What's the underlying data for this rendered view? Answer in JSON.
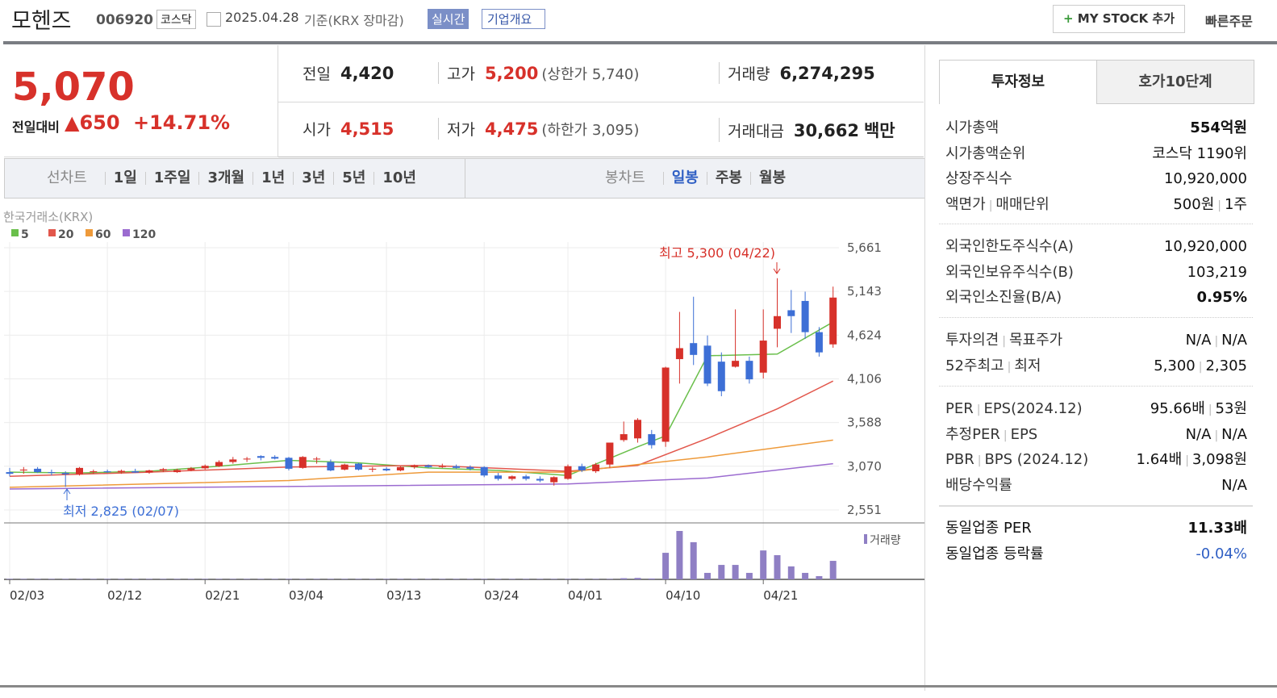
{
  "header": {
    "name": "모헨즈",
    "code": "006920",
    "market": "코스닥",
    "date": "2025.04.28",
    "basis": "기준(KRX 장마감)",
    "realtime": "실시간",
    "overview": "기업개요",
    "mystock": "MY STOCK 추가",
    "quick": "빠른주문"
  },
  "price": {
    "current": "5,070",
    "diff_label": "전일대비",
    "change": "650",
    "pct": "+14.71%"
  },
  "quotes": [
    {
      "label": "전일",
      "value": "4,420"
    },
    {
      "label": "고가",
      "value": "5,200",
      "sub": "(상한가 5,740)"
    },
    {
      "label": "거래량",
      "value": "6,274,295"
    },
    {
      "label": "시가",
      "value": "4,515"
    },
    {
      "label": "저가",
      "value": "4,475",
      "sub": "(하한가 3,095)"
    },
    {
      "label": "거래대금",
      "value": "30,662",
      "unit": "백만"
    }
  ],
  "tabs_left": [
    "선차트",
    "1일",
    "1주일",
    "3개월",
    "1년",
    "3년",
    "5년",
    "10년"
  ],
  "tabs_right": [
    "봉차트",
    "일봉",
    "주봉",
    "월봉"
  ],
  "side": {
    "tabs": [
      "투자정보",
      "호가10단계"
    ],
    "groups": [
      [
        {
          "label": [
            "시가총액"
          ],
          "value": [
            "554억원"
          ]
        },
        {
          "label": [
            "시가총액순위"
          ],
          "value": [
            "코스닥 1190위"
          ]
        },
        {
          "label": [
            "상장주식수"
          ],
          "value": [
            "10,920,000"
          ]
        },
        {
          "label": [
            "액면가",
            "매매단위"
          ],
          "value": [
            "500원",
            "1주"
          ]
        }
      ],
      [
        {
          "label": [
            "외국인한도주식수(A)"
          ],
          "value": [
            "10,920,000"
          ]
        },
        {
          "label": [
            "외국인보유주식수(B)"
          ],
          "value": [
            "103,219"
          ]
        },
        {
          "label": [
            "외국인소진율(B/A)"
          ],
          "value": [
            "0.95%"
          ]
        }
      ],
      [
        {
          "label": [
            "투자의견",
            "목표주가"
          ],
          "value": [
            "N/A",
            "N/A"
          ]
        },
        {
          "label": [
            "52주최고",
            "최저"
          ],
          "value": [
            "5,300",
            "2,305"
          ]
        }
      ],
      [
        {
          "label": [
            "PER",
            "EPS(2024.12)"
          ],
          "value": [
            "95.66배",
            "53원"
          ]
        },
        {
          "label": [
            "추정PER",
            "EPS"
          ],
          "value": [
            "N/A",
            "N/A"
          ]
        },
        {
          "label": [
            "PBR",
            "BPS (2024.12)"
          ],
          "value": [
            "1.64배",
            "3,098원"
          ]
        },
        {
          "label": [
            "배당수익률"
          ],
          "value": [
            "N/A"
          ]
        }
      ],
      [
        {
          "label": [
            "동일업종 PER"
          ],
          "value": [
            "11.33배"
          ]
        },
        {
          "label": [
            "동일업종 등락률"
          ],
          "value": [
            "-0.04%"
          ]
        }
      ]
    ]
  },
  "chart_data": {
    "type": "candlestick",
    "source": "한국거래소(KRX)",
    "volume_label": "거래량",
    "annotations": [
      "최고 5,300 (04/22)",
      "최저 2,825 (02/07)"
    ],
    "categories": [
      "02/03",
      null,
      null,
      null,
      null,
      null,
      null,
      "02/12",
      null,
      null,
      null,
      null,
      null,
      null,
      "02/21",
      null,
      null,
      null,
      null,
      null,
      "03/04",
      null,
      null,
      null,
      null,
      null,
      null,
      "03/13",
      null,
      null,
      null,
      null,
      null,
      null,
      "03/24",
      null,
      null,
      null,
      null,
      null,
      "04/01",
      null,
      null,
      null,
      null,
      null,
      null,
      "04/10",
      null,
      null,
      null,
      null,
      null,
      null,
      "04/21",
      null,
      null,
      null,
      null,
      null
    ],
    "open": [
      3000,
      3020,
      3040,
      3000,
      2990,
      2975,
      3000,
      3010,
      3000,
      3010,
      2995,
      3020,
      3000,
      3025,
      3045,
      3070,
      3120,
      3150,
      3190,
      3180,
      3170,
      3050,
      3150,
      3120,
      3030,
      3100,
      3030,
      3040,
      3020,
      3060,
      3080,
      3060,
      3070,
      3060,
      3060,
      2960,
      2920,
      2950,
      2920,
      2880,
      2920,
      3070,
      3010,
      3090,
      3380,
      3400,
      3450,
      3360,
      4340,
      4530,
      4500,
      4310,
      4250,
      4320,
      4180,
      4700,
      4920,
      5030,
      4660,
      4515
    ],
    "high": [
      3050,
      3060,
      3060,
      3030,
      3010,
      3060,
      3030,
      3030,
      3030,
      3040,
      3030,
      3050,
      3040,
      3060,
      3090,
      3140,
      3180,
      3180,
      3200,
      3200,
      3180,
      3190,
      3180,
      3150,
      3100,
      3110,
      3060,
      3060,
      3070,
      3090,
      3090,
      3100,
      3090,
      3080,
      3070,
      2990,
      2960,
      2970,
      2950,
      2950,
      3090,
      3100,
      3110,
      3340,
      3600,
      3640,
      3500,
      4250,
      4900,
      5080,
      4620,
      4420,
      4930,
      4370,
      4930,
      5300,
      5160,
      5140,
      4720,
      5200
    ],
    "low": [
      2950,
      2980,
      2990,
      2960,
      2825,
      2960,
      2980,
      2990,
      2980,
      2990,
      2980,
      3000,
      2990,
      3010,
      3030,
      3060,
      3100,
      3120,
      3140,
      3150,
      3020,
      3040,
      3100,
      3010,
      3020,
      3020,
      3000,
      3010,
      3010,
      3040,
      3050,
      3050,
      3040,
      3020,
      2940,
      2900,
      2900,
      2900,
      2880,
      2840,
      2910,
      3000,
      2990,
      3050,
      3360,
      3350,
      3280,
      3300,
      4050,
      4270,
      4020,
      3900,
      4240,
      4050,
      4110,
      4480,
      4650,
      4580,
      4370,
      4475
    ],
    "close": [
      2980,
      3030,
      3000,
      2990,
      2975,
      3050,
      3010,
      3000,
      3015,
      2995,
      3020,
      3035,
      3025,
      3045,
      3075,
      3120,
      3150,
      3160,
      3170,
      3160,
      3040,
      3180,
      3160,
      3020,
      3090,
      3030,
      3040,
      3020,
      3060,
      3080,
      3060,
      3070,
      3050,
      3040,
      2960,
      2920,
      2950,
      2920,
      2900,
      2940,
      3070,
      3020,
      3090,
      3350,
      3450,
      3620,
      3320,
      4240,
      4470,
      4390,
      4050,
      3960,
      4320,
      4100,
      4560,
      4850,
      4850,
      4660,
      4420,
      5070
    ],
    "up_color": "#d7312a",
    "down_color": "#3d6fd6",
    "volume": [
      150000,
      150000,
      150000,
      150000,
      150000,
      150000,
      150000,
      150000,
      150000,
      150000,
      150000,
      150000,
      150000,
      150000,
      150000,
      150000,
      150000,
      150000,
      150000,
      150000,
      150000,
      150000,
      150000,
      150000,
      150000,
      150000,
      150000,
      150000,
      150000,
      150000,
      150000,
      150000,
      150000,
      150000,
      150000,
      150000,
      150000,
      150000,
      150000,
      150000,
      150000,
      150000,
      150000,
      150000,
      400000,
      500000,
      300000,
      9000000,
      16400000,
      12600000,
      2200000,
      4900000,
      4900000,
      2200000,
      9800000,
      8200000,
      4400000,
      2200000,
      1100000,
      6274295
    ],
    "volume_color": "#8f7fc4",
    "vlim": [
      0,
      16400000
    ],
    "ma": [
      {
        "name": "5",
        "color": "#6abf4b",
        "x": [
          0,
          5,
          10,
          15,
          20,
          25,
          30,
          35,
          40,
          45,
          47,
          50,
          55,
          59
        ],
        "values": [
          3000,
          2990,
          3010,
          3070,
          3140,
          3110,
          3050,
          3020,
          2960,
          3300,
          3430,
          4380,
          4400,
          4780
        ]
      },
      {
        "name": "20",
        "color": "#e2574c",
        "x": [
          0,
          10,
          20,
          30,
          40,
          45,
          50,
          55,
          59
        ],
        "values": [
          2950,
          3000,
          3060,
          3080,
          3010,
          3080,
          3400,
          3750,
          4080
        ]
      },
      {
        "name": "60",
        "color": "#ee9a3a",
        "x": [
          0,
          20,
          30,
          40,
          50,
          59
        ],
        "values": [
          2820,
          2900,
          3000,
          3000,
          3180,
          3380
        ]
      },
      {
        "name": "120",
        "color": "#9b6bd0",
        "x": [
          0,
          20,
          40,
          50,
          59
        ],
        "values": [
          2800,
          2830,
          2860,
          2930,
          3100
        ]
      }
    ],
    "ylim": [
      2450,
      5730
    ],
    "yticks": [
      {
        "value": 2551,
        "label": "2,551"
      },
      {
        "value": 3070,
        "label": "3,070"
      },
      {
        "value": 3588,
        "label": "3,588"
      },
      {
        "value": 4106,
        "label": "4,106"
      },
      {
        "value": 4624,
        "label": "4,624"
      },
      {
        "value": 5143,
        "label": "5,143"
      },
      {
        "value": 5661,
        "label": "5,661"
      }
    ],
    "grid": true
  }
}
